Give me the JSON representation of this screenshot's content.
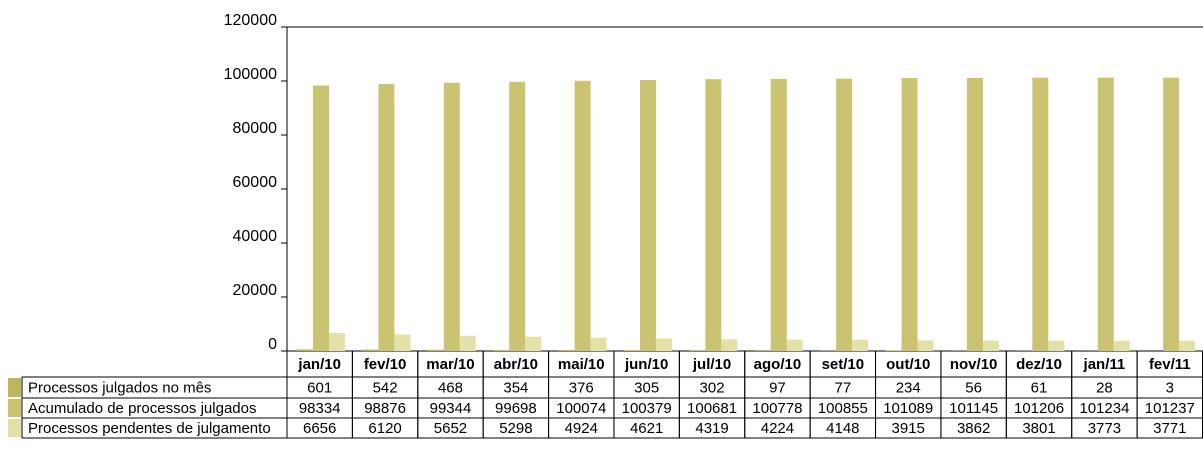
{
  "chart_data": {
    "type": "bar",
    "categories": [
      "jan/10",
      "fev/10",
      "mar/10",
      "abr/10",
      "mai/10",
      "jun/10",
      "jul/10",
      "ago/10",
      "set/10",
      "out/10",
      "nov/10",
      "dez/10",
      "jan/11",
      "fev/11"
    ],
    "series": [
      {
        "name": "Processos julgados no mês",
        "color": "#bfb65a",
        "values": [
          601,
          542,
          468,
          354,
          376,
          305,
          302,
          97,
          77,
          234,
          56,
          61,
          28,
          3
        ]
      },
      {
        "name": "Acumulado de processos julgados",
        "color": "#c9c372",
        "values": [
          98334,
          98876,
          99344,
          99698,
          100074,
          100379,
          100681,
          100778,
          100855,
          101089,
          101145,
          101206,
          101234,
          101237
        ]
      },
      {
        "name": "Processos pendentes de julgamento",
        "color": "#e3e0a8",
        "values": [
          6656,
          6120,
          5652,
          5298,
          4924,
          4621,
          4319,
          4224,
          4148,
          3915,
          3862,
          3801,
          3773,
          3771
        ]
      }
    ],
    "ylim": [
      0,
      120000
    ],
    "yticks": [
      0,
      20000,
      40000,
      60000,
      80000,
      100000,
      120000
    ],
    "grid": false
  }
}
